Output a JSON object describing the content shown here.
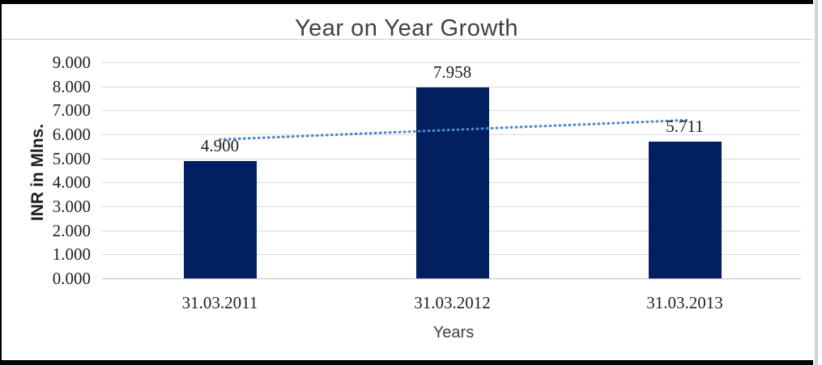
{
  "chart_data": {
    "type": "bar",
    "title": "Year on Year Growth",
    "categories": [
      "31.03.2011",
      "31.03.2012",
      "31.03.2013"
    ],
    "values": [
      4.9,
      7.958,
      5.711
    ],
    "data_labels": [
      "4.900",
      "7.958",
      "5.711"
    ],
    "xlabel": "Years",
    "ylabel": "INR in Mlns.",
    "ylim": [
      0,
      9
    ],
    "ytick_step": 1,
    "ytick_labels": [
      "0.000",
      "1.000",
      "2.000",
      "3.000",
      "4.000",
      "5.000",
      "6.000",
      "7.000",
      "8.000",
      "9.000"
    ],
    "grid": true,
    "legend": "none",
    "trendline": {
      "type": "linear",
      "style": "dotted",
      "values": [
        5.784,
        6.19,
        6.595
      ]
    },
    "colors": {
      "bar": "#002060",
      "trendline": "#4e87c8",
      "gridline": "#d9d9d9",
      "axis_line": "#bfbfbf",
      "text": "#1f1f1f",
      "title_text": "#404040",
      "frame_border": "#000000",
      "right_strip": "#d4d4d4",
      "divider": "#d0d0d0"
    }
  }
}
